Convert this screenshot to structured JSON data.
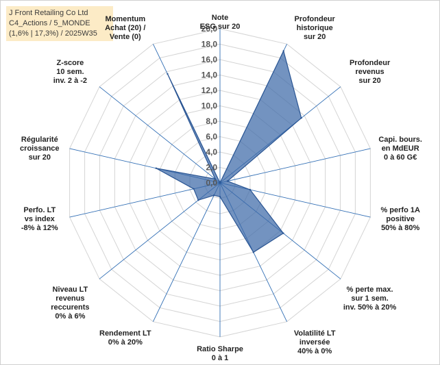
{
  "title_box": {
    "line1": "J Front Retailing Co Ltd",
    "line2": "C4_Actions / 5_MONDE",
    "line3": "(1,6% | 17,3%) / 2025W35"
  },
  "colors": {
    "grid": "#d4d4d4",
    "spoke": "#2f6db4",
    "fill": "#3d6aa8",
    "stroke": "#2a5593",
    "title_bg": "#fcebc6"
  },
  "chart_data": {
    "type": "radar",
    "rmin": 0,
    "rmax": 20,
    "ticks": [
      "0,0",
      "2,0",
      "4,0",
      "6,0",
      "8,0",
      "10,0",
      "12,0",
      "14,0",
      "16,0",
      "18,0",
      "20,0"
    ],
    "axes": [
      {
        "label": [
          "Note",
          "ESG sur 20"
        ]
      },
      {
        "label": [
          "Profondeur",
          "historique",
          "sur 20"
        ]
      },
      {
        "label": [
          "Profondeur",
          "revenus",
          "sur 20"
        ]
      },
      {
        "label": [
          "Capi. bours.",
          "en MdEUR",
          "0 à 60 G€"
        ]
      },
      {
        "label": [
          "% perfo 1A",
          "positive",
          "50% à 80%"
        ]
      },
      {
        "label": [
          "% perte max.",
          "sur 1 sem.",
          "inv. 50% à 20%"
        ]
      },
      {
        "label": [
          "Volatilité LT",
          "inversée",
          "40% à 0%"
        ]
      },
      {
        "label": [
          "Ratio Sharpe",
          "0 à 1"
        ]
      },
      {
        "label": [
          "Rendement LT",
          "0% à 20%"
        ]
      },
      {
        "label": [
          "Niveau LT",
          "revenus",
          "reccurents",
          "0% à 6%"
        ]
      },
      {
        "label": [
          "Perfo. LT",
          "vs index",
          "-8% à 12%"
        ]
      },
      {
        "label": [
          "Régularité",
          "croissance",
          "sur 20"
        ]
      },
      {
        "label": [
          "Z-score",
          "10 sem.",
          "inv. 2 à -2"
        ]
      },
      {
        "label": [
          "Momentum",
          "Achat (20) /",
          "Vente (0)"
        ]
      }
    ],
    "series": [
      {
        "values": [
          0.0,
          19.0,
          13.5,
          1.0,
          4.0,
          10.5,
          10.0,
          1.8,
          1.8,
          3.6,
          3.5,
          8.5,
          0.8,
          15.7
        ]
      }
    ]
  }
}
